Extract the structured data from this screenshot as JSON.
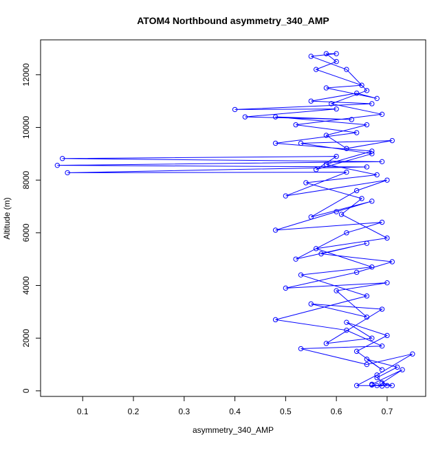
{
  "chart_data": {
    "type": "scatter",
    "title": "ATOM4 Northbound asymmetry_340_AMP",
    "x_label": "asymmetry_340_AMP",
    "y_label": "Altitude (m)",
    "color": "#0000ff",
    "connect": true,
    "xlim": [
      0.017,
      0.776
    ],
    "ylim": [
      -212,
      13325
    ],
    "xticks": [
      0.1,
      0.2,
      0.3,
      0.4,
      0.5,
      0.6,
      0.7
    ],
    "yticks": [
      0,
      2000,
      4000,
      6000,
      8000,
      10000,
      12000
    ],
    "x": [
      0.68,
      0.69,
      0.67,
      0.7,
      0.68,
      0.72,
      0.66,
      0.69,
      0.64,
      0.7,
      0.62,
      0.67,
      0.58,
      0.69,
      0.55,
      0.66,
      0.6,
      0.7,
      0.5,
      0.64,
      0.71,
      0.57,
      0.66,
      0.52,
      0.62,
      0.69,
      0.48,
      0.6,
      0.67,
      0.55,
      0.64,
      0.7,
      0.5,
      0.62,
      0.07,
      0.66,
      0.05,
      0.69,
      0.06,
      0.6,
      0.56,
      0.67,
      0.53,
      0.71,
      0.62,
      0.58,
      0.66,
      0.48,
      0.63,
      0.42,
      0.6,
      0.4,
      0.67,
      0.55,
      0.64,
      0.68,
      0.58,
      0.65,
      0.56,
      0.6,
      0.58,
      0.6,
      0.55,
      0.62,
      0.66,
      0.59,
      0.69,
      0.52,
      0.64,
      0.48,
      0.67,
      0.58,
      0.68,
      0.54,
      0.65,
      0.61,
      0.7,
      0.56,
      0.67,
      0.53,
      0.66,
      0.48,
      0.62,
      0.69,
      0.53,
      0.66,
      0.75,
      0.68,
      0.64,
      0.71,
      0.69,
      0.73,
      0.67
    ],
    "y": [
      200,
      180,
      220,
      200,
      500,
      900,
      1200,
      800,
      1500,
      2100,
      2600,
      2000,
      1800,
      3100,
      3300,
      2800,
      3800,
      4100,
      3900,
      4500,
      4900,
      5200,
      5600,
      5000,
      6000,
      6400,
      6100,
      6800,
      7200,
      6600,
      7600,
      8000,
      7400,
      8300,
      8280,
      8500,
      8560,
      8700,
      8820,
      8900,
      8400,
      9000,
      9400,
      9500,
      9200,
      9700,
      10100,
      10400,
      10300,
      10400,
      10700,
      10680,
      10900,
      11000,
      11300,
      11100,
      11500,
      11600,
      12200,
      12500,
      12800,
      12800,
      12700,
      12200,
      11400,
      10900,
      10500,
      10100,
      9800,
      9400,
      9100,
      8600,
      8200,
      7900,
      7300,
      6700,
      5800,
      5400,
      4700,
      4400,
      3600,
      2700,
      2300,
      1700,
      1600,
      1000,
      1400,
      600,
      200,
      200,
      300,
      800,
      250
    ]
  }
}
